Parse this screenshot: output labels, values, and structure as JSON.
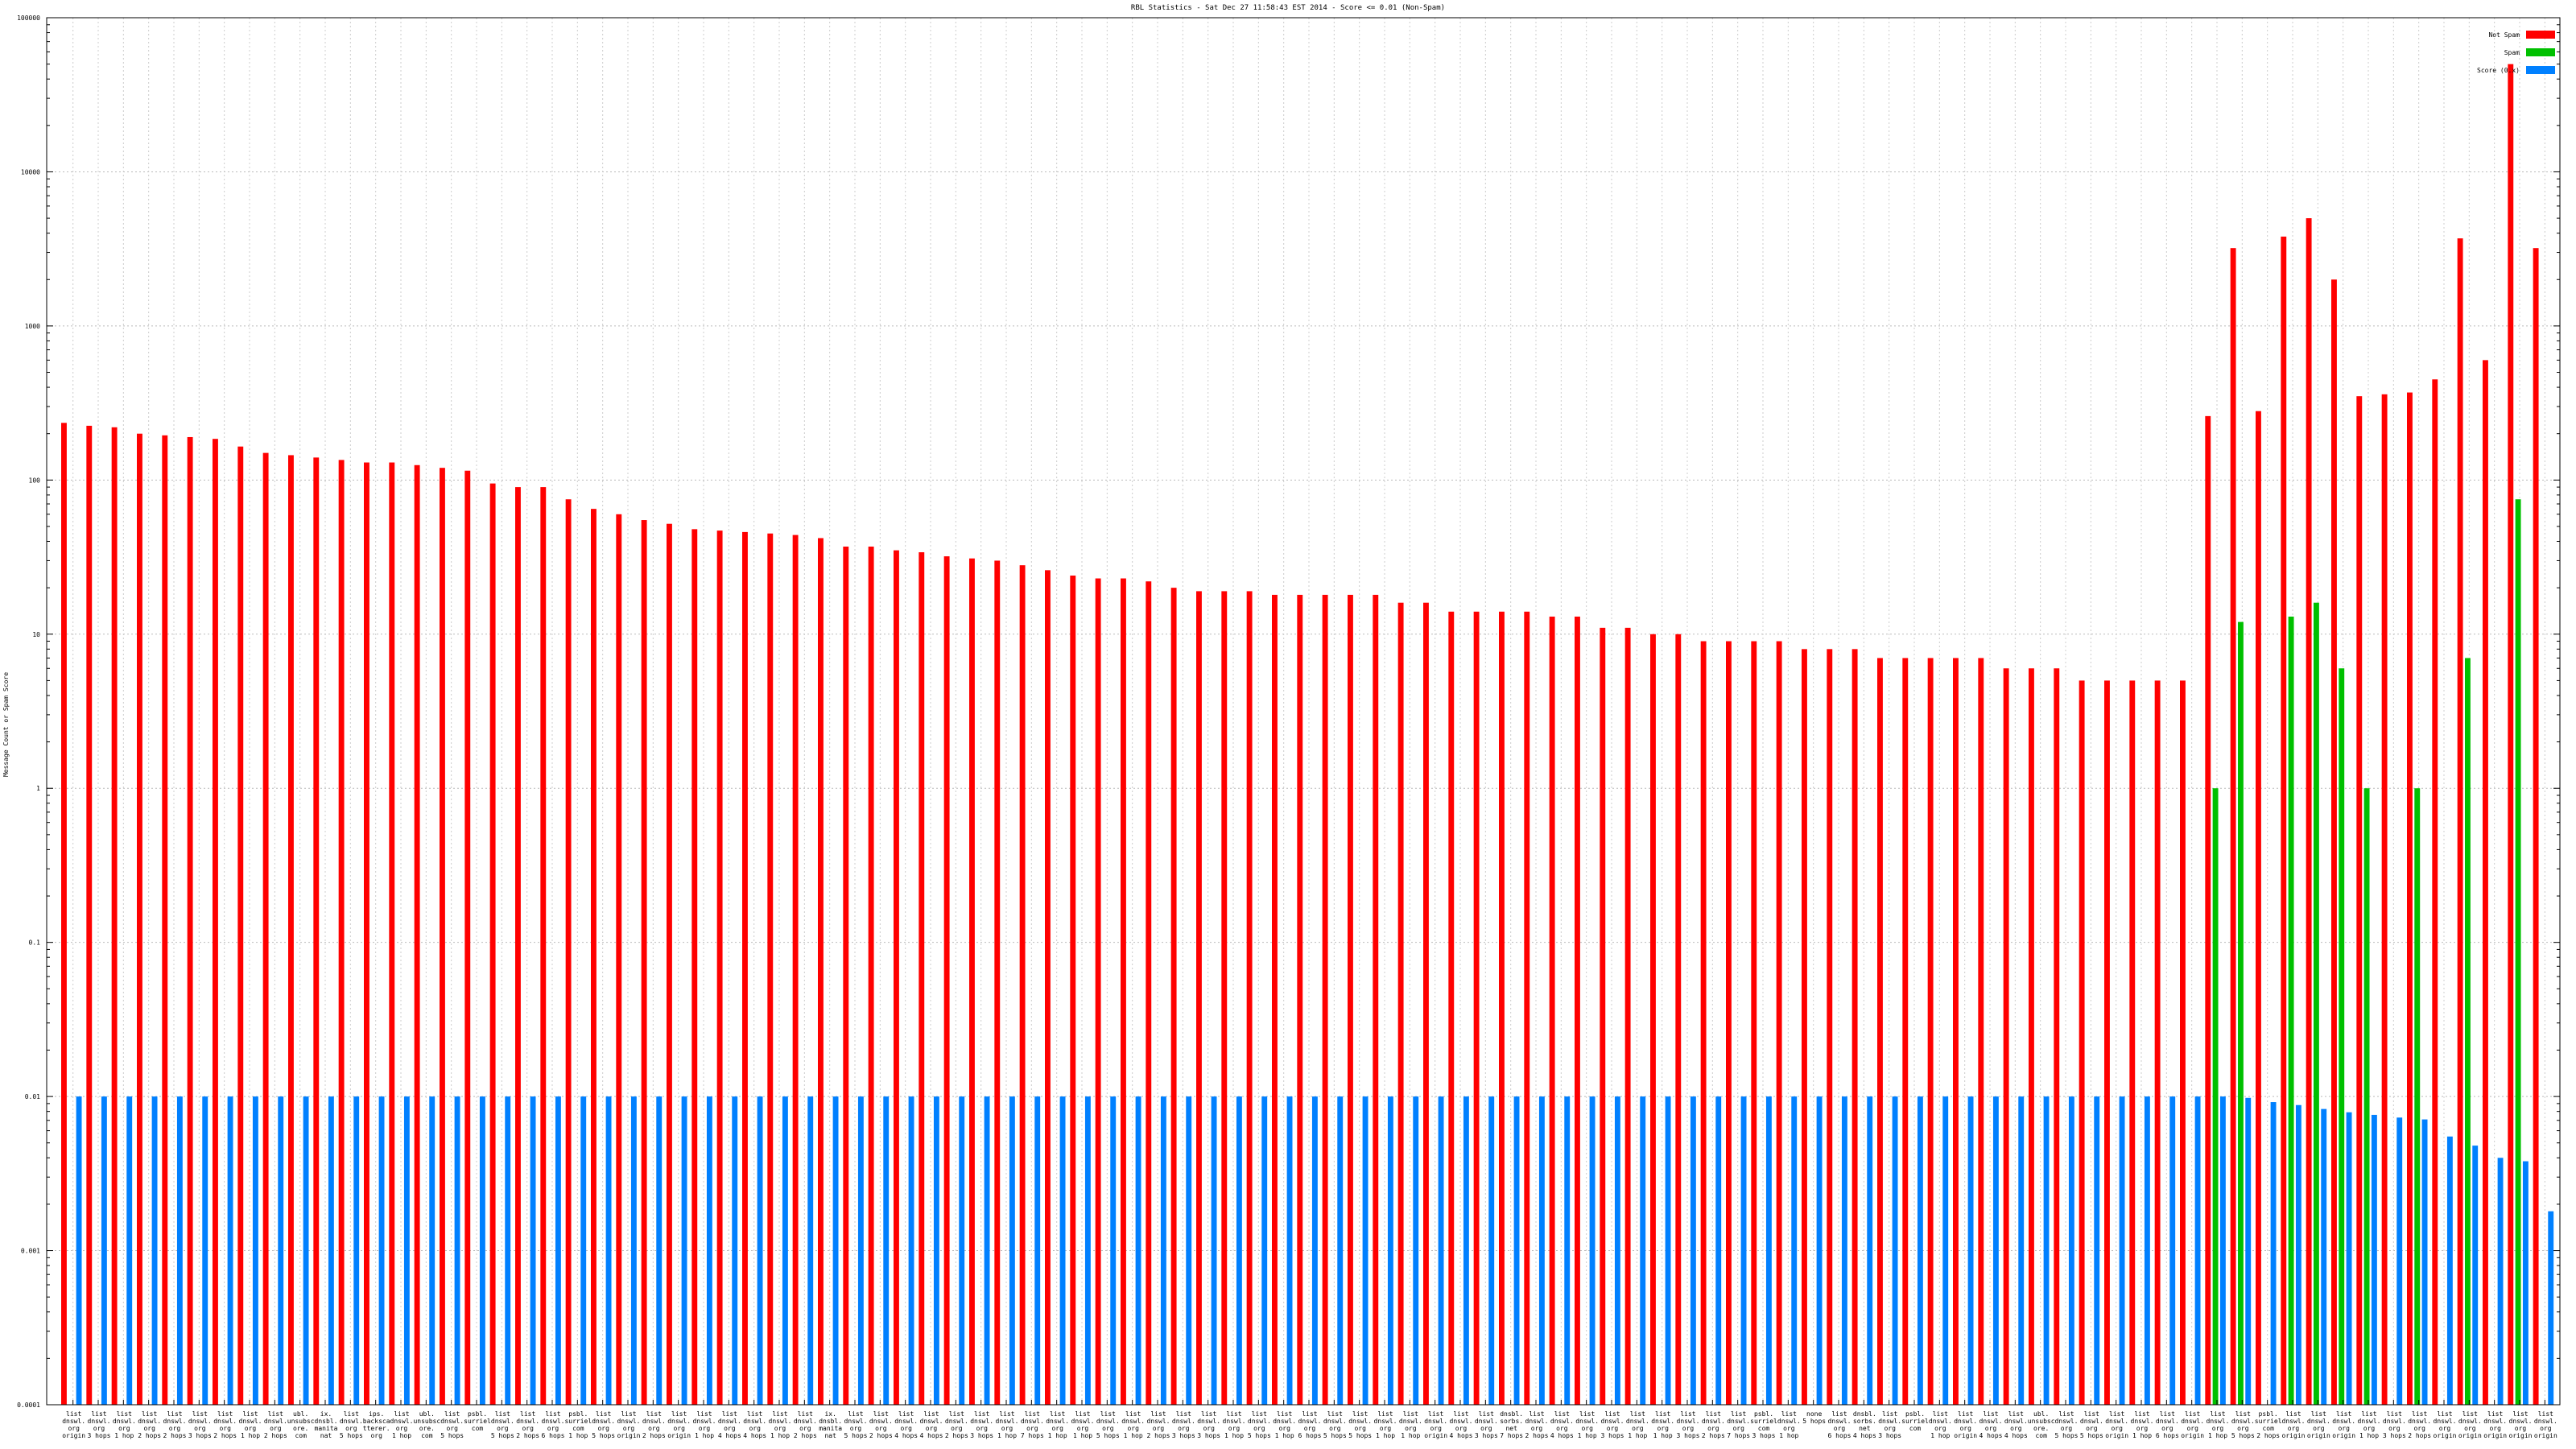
{
  "chart_data": {
    "type": "bar",
    "title": "RBL Statistics - Sat Dec 27 11:58:43 EST 2014 - Score <= 0.01 (Non-Spam)",
    "ylabel": "Message Count or Spam Score",
    "xlabel": "",
    "yscale": "log",
    "ylim": [
      0.0001,
      100000
    ],
    "yticks": [
      "0.0001",
      "0.001",
      "0.01",
      "0.1",
      "1",
      "10",
      "100",
      "1000",
      "10000",
      "100000"
    ],
    "grid": true,
    "legend_position": "top-right",
    "colors": {
      "not_spam": "#ff0000",
      "spam": "#00c000",
      "score": "#0080ff"
    },
    "series": [
      {
        "name": "Not Spam",
        "key": "not_spam"
      },
      {
        "name": "Spam",
        "key": "spam"
      },
      {
        "name": "Score (0.x)",
        "key": "score"
      }
    ],
    "not_spam": [
      235,
      225,
      220,
      200,
      195,
      190,
      185,
      165,
      150,
      145,
      140,
      135,
      130,
      130,
      125,
      120,
      115,
      95,
      90,
      90,
      75,
      65,
      60,
      55,
      52,
      48,
      47,
      46,
      45,
      44,
      42,
      37,
      37,
      35,
      34,
      32,
      31,
      30,
      28,
      26,
      24,
      23,
      23,
      22,
      20,
      19,
      19,
      19,
      18,
      18,
      18,
      18,
      18,
      16,
      16,
      14,
      14,
      14,
      14,
      13,
      13,
      11,
      11,
      10,
      10,
      9,
      9,
      9,
      9,
      8,
      8,
      8,
      7,
      7,
      7,
      7,
      7,
      6,
      6,
      6,
      5,
      5,
      5,
      5,
      5,
      260,
      3200,
      280,
      3800,
      5000,
      2000,
      350,
      360,
      370,
      450,
      3700,
      600,
      50000,
      3200
    ],
    "spam": [
      0,
      0,
      0,
      0,
      0,
      0,
      0,
      0,
      0,
      0,
      0,
      0,
      0,
      0,
      0,
      0,
      0,
      0,
      0,
      0,
      0,
      0,
      0,
      0,
      0,
      0,
      0,
      0,
      0,
      0,
      0,
      0,
      0,
      0,
      0,
      0,
      0,
      0,
      0,
      0,
      0,
      0,
      0,
      0,
      0,
      0,
      0,
      0,
      0,
      0,
      0,
      0,
      0,
      0,
      0,
      0,
      0,
      0,
      0,
      0,
      0,
      0,
      0,
      0,
      0,
      0,
      0,
      0,
      0,
      0,
      0,
      0,
      0,
      0,
      0,
      0,
      0,
      0,
      0,
      0,
      0,
      0,
      0,
      0,
      0,
      1,
      12,
      0,
      13,
      16,
      6,
      1,
      0,
      1,
      0,
      7,
      0,
      75,
      0
    ],
    "score": [
      0.01,
      0.01,
      0.01,
      0.01,
      0.01,
      0.01,
      0.01,
      0.01,
      0.01,
      0.01,
      0.01,
      0.01,
      0.01,
      0.01,
      0.01,
      0.01,
      0.01,
      0.01,
      0.01,
      0.01,
      0.01,
      0.01,
      0.01,
      0.01,
      0.01,
      0.01,
      0.01,
      0.01,
      0.01,
      0.01,
      0.01,
      0.01,
      0.01,
      0.01,
      0.01,
      0.01,
      0.01,
      0.01,
      0.01,
      0.01,
      0.01,
      0.01,
      0.01,
      0.01,
      0.01,
      0.01,
      0.01,
      0.01,
      0.01,
      0.01,
      0.01,
      0.01,
      0.01,
      0.01,
      0.01,
      0.01,
      0.01,
      0.01,
      0.01,
      0.01,
      0.01,
      0.01,
      0.01,
      0.01,
      0.01,
      0.01,
      0.01,
      0.01,
      0.01,
      0.01,
      0.01,
      0.01,
      0.01,
      0.01,
      0.01,
      0.01,
      0.01,
      0.01,
      0.01,
      0.01,
      0.01,
      0.01,
      0.01,
      0.01,
      0.01,
      0.01,
      0.0098,
      0.0092,
      0.0088,
      0.0083,
      0.0079,
      0.0076,
      0.0073,
      0.0071,
      0.0055,
      0.0048,
      0.004,
      0.0038,
      0.0018
    ],
    "categories": [
      [
        "list",
        "dnswl.",
        "org",
        "origin"
      ],
      [
        "list",
        "dnswl.",
        "org",
        "3 hops"
      ],
      [
        "list",
        "dnswl.",
        "org",
        "1 hop"
      ],
      [
        "list",
        "dnswl.",
        "org",
        "2 hops"
      ],
      [
        "list",
        "dnswl.",
        "org",
        "2 hops"
      ],
      [
        "list",
        "dnswl.",
        "org",
        "3 hops"
      ],
      [
        "list",
        "dnswl.",
        "org",
        "2 hops"
      ],
      [
        "list",
        "dnswl.",
        "org",
        "1 hop"
      ],
      [
        "list",
        "dnswl.",
        "org",
        "2 hops"
      ],
      [
        "ubl.",
        "unsubsc",
        "ore.",
        "com"
      ],
      [
        "ix.",
        "dnsbl.",
        "manita",
        "nat"
      ],
      [
        "list",
        "dnswl.",
        "org",
        "5 hops"
      ],
      [
        "ips.",
        "backsca",
        "tterer.",
        "org"
      ],
      [
        "list",
        "dnswl.",
        "org",
        "1 hop"
      ],
      [
        "ubl.",
        "unsubsc",
        "ore.",
        "com"
      ],
      [
        "list",
        "dnswl.",
        "org",
        "5 hops"
      ],
      [
        "psbl.",
        "surriel",
        "com"
      ],
      [
        "list",
        "dnswl.",
        "org",
        "5 hops"
      ],
      [
        "list",
        "dnswl.",
        "org",
        "2 hops"
      ],
      [
        "list",
        "dnswl.",
        "org",
        "6 hops"
      ],
      [
        "psbl.",
        "surriel",
        "com",
        "1 hop"
      ],
      [
        "list",
        "dnswl.",
        "org",
        "5 hops"
      ],
      [
        "list",
        "dnswl.",
        "org",
        "origin"
      ],
      [
        "list",
        "dnswl.",
        "org",
        "2 hops"
      ],
      [
        "list",
        "dnswl.",
        "org",
        "origin"
      ],
      [
        "list",
        "dnswl.",
        "org",
        "1 hop"
      ],
      [
        "list",
        "dnswl.",
        "org",
        "4 hops"
      ],
      [
        "list",
        "dnswl.",
        "org",
        "4 hops"
      ],
      [
        "list",
        "dnswl.",
        "org",
        "1 hop"
      ],
      [
        "list",
        "dnswl.",
        "org",
        "2 hops"
      ],
      [
        "ix.",
        "dnsbl.",
        "manita",
        "nat"
      ],
      [
        "list",
        "dnswl.",
        "org",
        "5 hops"
      ],
      [
        "list",
        "dnswl.",
        "org",
        "2 hops"
      ],
      [
        "list",
        "dnswl.",
        "org",
        "4 hops"
      ],
      [
        "list",
        "dnswl.",
        "org",
        "4 hops"
      ],
      [
        "list",
        "dnswl.",
        "org",
        "2 hops"
      ],
      [
        "list",
        "dnswl.",
        "org",
        "3 hops"
      ],
      [
        "list",
        "dnswl.",
        "org",
        "1 hop"
      ],
      [
        "list",
        "dnswl.",
        "org",
        "7 hops"
      ],
      [
        "list",
        "dnswl.",
        "org",
        "1 hop"
      ],
      [
        "list",
        "dnswl.",
        "org",
        "1 hop"
      ],
      [
        "list",
        "dnswl.",
        "org",
        "5 hops"
      ],
      [
        "list",
        "dnswl.",
        "org",
        "1 hop"
      ],
      [
        "list",
        "dnswl.",
        "org",
        "2 hops"
      ],
      [
        "list",
        "dnswl.",
        "org",
        "3 hops"
      ],
      [
        "list",
        "dnswl.",
        "org",
        "3 hops"
      ],
      [
        "list",
        "dnswl.",
        "org",
        "1 hop"
      ],
      [
        "list",
        "dnswl.",
        "org",
        "5 hops"
      ],
      [
        "list",
        "dnswl.",
        "org",
        "1 hop"
      ],
      [
        "list",
        "dnswl.",
        "org",
        "6 hops"
      ],
      [
        "list",
        "dnswl.",
        "org",
        "5 hops"
      ],
      [
        "list",
        "dnswl.",
        "org",
        "5 hops"
      ],
      [
        "list",
        "dnswl.",
        "org",
        "1 hop"
      ],
      [
        "list",
        "dnswl.",
        "org",
        "1 hop"
      ],
      [
        "list",
        "dnswl.",
        "org",
        "origin"
      ],
      [
        "list",
        "dnswl.",
        "org",
        "4 hops"
      ],
      [
        "list",
        "dnswl.",
        "org",
        "3 hops"
      ],
      [
        "dnsbl.",
        "sorbs.",
        "net",
        "7 hops"
      ],
      [
        "list",
        "dnswl.",
        "org",
        "2 hops"
      ],
      [
        "list",
        "dnswl.",
        "org",
        "4 hops"
      ],
      [
        "list",
        "dnswl.",
        "org",
        "1 hop"
      ],
      [
        "list",
        "dnswl.",
        "org",
        "3 hops"
      ],
      [
        "list",
        "dnswl.",
        "org",
        "1 hop"
      ],
      [
        "list",
        "dnswl.",
        "org",
        "1 hop"
      ],
      [
        "list",
        "dnswl.",
        "org",
        "3 hops"
      ],
      [
        "list",
        "dnswl.",
        "org",
        "2 hops"
      ],
      [
        "list",
        "dnswl.",
        "org",
        "7 hops"
      ],
      [
        "psbl.",
        "surriel",
        "com",
        "3 hops"
      ],
      [
        "list",
        "dnswl.",
        "org",
        "1 hop"
      ],
      [
        "none",
        "5 hops"
      ],
      [
        "list",
        "dnswl.",
        "org",
        "6 hops"
      ],
      [
        "dnsbl.",
        "sorbs.",
        "net",
        "4 hops"
      ],
      [
        "list",
        "dnswl.",
        "org",
        "3 hops"
      ],
      [
        "psbl.",
        "surriel",
        "com"
      ],
      [
        "list",
        "dnswl.",
        "org",
        "1 hop"
      ],
      [
        "list",
        "dnswl.",
        "org",
        "origin"
      ],
      [
        "list",
        "dnswl.",
        "org",
        "4 hops"
      ],
      [
        "list",
        "dnswl.",
        "org",
        "4 hops"
      ],
      [
        "ubl.",
        "unsubsc",
        "ore.",
        "com"
      ],
      [
        "list",
        "dnswl.",
        "org",
        "5 hops"
      ],
      [
        "list",
        "dnswl.",
        "org",
        "5 hops"
      ],
      [
        "list",
        "dnswl.",
        "org",
        "origin"
      ],
      [
        "list",
        "dnswl.",
        "org",
        "1 hop"
      ],
      [
        "list",
        "dnswl.",
        "org",
        "6 hops"
      ],
      [
        "list",
        "dnswl.",
        "org",
        "origin"
      ],
      [
        "list",
        "dnswl.",
        "org",
        "1 hop"
      ],
      [
        "list",
        "dnswl.",
        "org",
        "5 hops"
      ],
      [
        "psbl.",
        "surriel",
        "com",
        "2 hops"
      ],
      [
        "list",
        "dnswl.",
        "org",
        "origin"
      ],
      [
        "list",
        "dnswl.",
        "org",
        "origin"
      ],
      [
        "list",
        "dnswl.",
        "org",
        "origin"
      ],
      [
        "list",
        "dnswl.",
        "org",
        "1 hop"
      ],
      [
        "list",
        "dnswl.",
        "org",
        "3 hops"
      ],
      [
        "list",
        "dnswl.",
        "org",
        "2 hops"
      ],
      [
        "list",
        "dnswl.",
        "org",
        "origin"
      ],
      [
        "list",
        "dnswl.",
        "org",
        "origin"
      ],
      [
        "list",
        "dnswl.",
        "org",
        "origin"
      ],
      [
        "list",
        "dnswl.",
        "org",
        "origin"
      ],
      [
        "list",
        "dnswl.",
        "org",
        "origin"
      ]
    ]
  }
}
